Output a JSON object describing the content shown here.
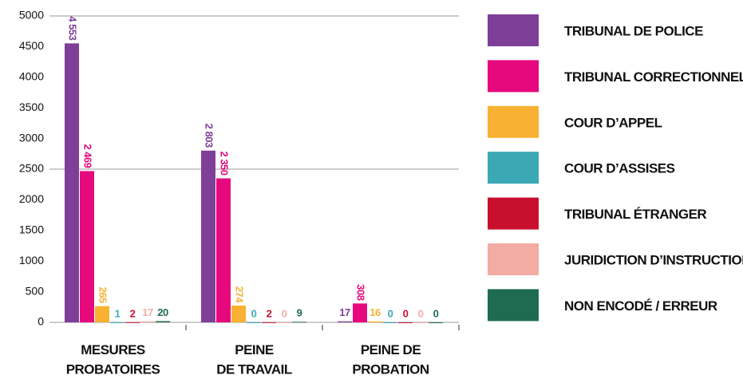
{
  "chart_data": {
    "type": "bar",
    "categories": [
      "MESURES\nPROBATOIRES",
      "PEINE\nDE TRAVAIL",
      "PEINE DE\nPROBATION"
    ],
    "series": [
      {
        "name": "TRIBUNAL DE POLICE",
        "color": "#7f3f98",
        "values": [
          4553,
          2803,
          17
        ],
        "value_labels": [
          "4 553",
          "2 803",
          "17"
        ]
      },
      {
        "name": "TRIBUNAL CORRECTIONNEL",
        "color": "#e6097d",
        "values": [
          2469,
          2350,
          308
        ],
        "value_labels": [
          "2 469",
          "2 350",
          "308"
        ]
      },
      {
        "name": "COUR D’APPEL",
        "color": "#f8b133",
        "values": [
          265,
          274,
          16
        ]
      },
      {
        "name": "COUR D’ASSISES",
        "color": "#3aa9b5",
        "values": [
          1,
          0,
          0
        ]
      },
      {
        "name": "TRIBUNAL ÉTRANGER",
        "color": "#c8102e",
        "values": [
          2,
          2,
          0
        ]
      },
      {
        "name": "JURIDICTION D’INSTRUCTION",
        "color": "#f2aca4",
        "values": [
          17,
          0,
          0
        ]
      },
      {
        "name": "NON ENCODÉ / ERREUR",
        "color": "#1e6b52",
        "values": [
          20,
          9,
          0
        ]
      }
    ],
    "ylim": [
      0,
      5000
    ],
    "yticks": [
      0,
      500,
      1000,
      1500,
      2000,
      2500,
      3000,
      3500,
      4000,
      4500,
      5000
    ],
    "ygrid": [
      2500,
      5000
    ],
    "legend": "right"
  }
}
